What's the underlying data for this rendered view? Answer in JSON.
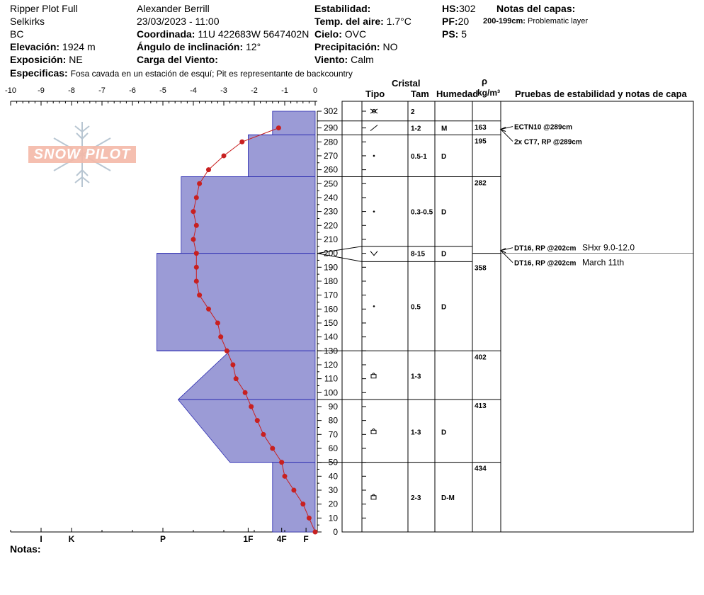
{
  "header": {
    "pit_name": "Ripper Plot Full",
    "range": "Selkirks",
    "state": "BC",
    "elevation_label": "Elevación:",
    "elevation_value": "1924 m",
    "aspect_label": "Exposición:",
    "aspect_value": "NE",
    "observer": "Alexander Berrill",
    "datetime": "23/03/2023 - 11:00",
    "coord_label": "Coordinada:",
    "coord_value": "11U 422683W 5647402N",
    "slope_label": "Ángulo de inclinación:",
    "slope_value": "12°",
    "wind_load_label": "Carga del Viento:",
    "stability_label": "Estabilidad:",
    "air_temp_label": "Temp. del aire:",
    "air_temp_value": "1.7°C",
    "sky_label": "Cielo:",
    "sky_value": "OVC",
    "precip_label": "Precipitación:",
    "precip_value": "NO",
    "wind_label": "Viento:",
    "wind_value": "Calm",
    "hs_label": "HS:",
    "hs_value": "302",
    "pf_label": "PF:",
    "pf_value": "20",
    "ps_label": "PS:",
    "ps_value": "5",
    "layer_notes_label": "Notas del capas:",
    "layer_note_range": "200-199cm:",
    "layer_note_text": "Problematic layer",
    "specifics_label": "Especificas:",
    "specifics_value": "Fosa cavada en un estación de esquí; Pit es representante de backcountry",
    "notes_label": "Notas:"
  },
  "logo": {
    "text": "SNOW PILOT"
  },
  "columns": {
    "crystal": "Cristal",
    "type": "Tipo",
    "size": "Tam",
    "moisture": "Humedad",
    "rho": "ρ",
    "density_unit": "kg/m³",
    "tests": "Pruebas de estabilidad y notas de capa"
  },
  "colors": {
    "hardness_fill": "#9b9bd6",
    "hardness_line": "#2a2ab0",
    "temp_line": "#c82020",
    "grid": "#000000"
  },
  "chart_data": {
    "type": "profile",
    "ylim": [
      0,
      302
    ],
    "y_ticks": [
      0,
      10,
      20,
      30,
      40,
      50,
      60,
      70,
      80,
      90,
      100,
      110,
      120,
      130,
      140,
      150,
      160,
      170,
      180,
      190,
      200,
      210,
      220,
      230,
      240,
      250,
      260,
      270,
      280,
      290,
      302
    ],
    "temp_axis": {
      "ticks": [
        -10,
        -9,
        -8,
        -7,
        -6,
        -5,
        -4,
        -3,
        -2,
        -1,
        0
      ],
      "xlim": [
        -10,
        0
      ]
    },
    "hardness_axis": {
      "labels": [
        "I",
        "K",
        "P",
        "1F",
        "4F",
        "F"
      ],
      "values": [
        9,
        8,
        5,
        2.2,
        1.1,
        0.3
      ]
    },
    "hardness_profile": [
      [
        0,
        1.4
      ],
      [
        50,
        1.4
      ],
      [
        50,
        2.8
      ],
      [
        95,
        4.5
      ],
      [
        95,
        4.5
      ],
      [
        130,
        2.8
      ],
      [
        130,
        5.2
      ],
      [
        200,
        5.2
      ],
      [
        200,
        4.4
      ],
      [
        255,
        4.4
      ],
      [
        255,
        2.2
      ],
      [
        285,
        2.2
      ],
      [
        285,
        1.4
      ],
      [
        302,
        1.4
      ]
    ],
    "hardness_dividers": [
      50,
      95,
      130,
      200,
      255,
      285
    ],
    "temperature": [
      {
        "depth": 290,
        "temp": -1.2
      },
      {
        "depth": 280,
        "temp": -2.4
      },
      {
        "depth": 270,
        "temp": -3.0
      },
      {
        "depth": 260,
        "temp": -3.5
      },
      {
        "depth": 250,
        "temp": -3.8
      },
      {
        "depth": 240,
        "temp": -3.9
      },
      {
        "depth": 230,
        "temp": -4.0
      },
      {
        "depth": 220,
        "temp": -3.9
      },
      {
        "depth": 210,
        "temp": -4.0
      },
      {
        "depth": 200,
        "temp": -3.9
      },
      {
        "depth": 190,
        "temp": -3.9
      },
      {
        "depth": 180,
        "temp": -3.9
      },
      {
        "depth": 170,
        "temp": -3.8
      },
      {
        "depth": 160,
        "temp": -3.5
      },
      {
        "depth": 150,
        "temp": -3.2
      },
      {
        "depth": 140,
        "temp": -3.1
      },
      {
        "depth": 130,
        "temp": -2.9
      },
      {
        "depth": 120,
        "temp": -2.7
      },
      {
        "depth": 110,
        "temp": -2.6
      },
      {
        "depth": 100,
        "temp": -2.3
      },
      {
        "depth": 90,
        "temp": -2.1
      },
      {
        "depth": 80,
        "temp": -1.9
      },
      {
        "depth": 70,
        "temp": -1.7
      },
      {
        "depth": 60,
        "temp": -1.4
      },
      {
        "depth": 50,
        "temp": -1.1
      },
      {
        "depth": 40,
        "temp": -1.0
      },
      {
        "depth": 30,
        "temp": -0.7
      },
      {
        "depth": 20,
        "temp": -0.4
      },
      {
        "depth": 10,
        "temp": -0.2
      },
      {
        "depth": 0,
        "temp": 0.0
      }
    ],
    "layers": [
      {
        "top": 302,
        "bottom": 295,
        "mid": 299,
        "type": "precipitation-particles",
        "size": "2",
        "moisture": "",
        "density": ""
      },
      {
        "top": 295,
        "bottom": 285,
        "mid": 290,
        "type": "decomposing-fragments",
        "size": "1-2",
        "moisture": "M",
        "density": "163"
      },
      {
        "top": 285,
        "bottom": 255,
        "mid": 270,
        "type": "rounded-grains",
        "size": "0.5-1",
        "moisture": "D",
        "density": "195"
      },
      {
        "top": 255,
        "bottom": 205,
        "mid": 230,
        "type": "rounded-grains",
        "size": "0.3-0.5",
        "moisture": "D",
        "density": "282"
      },
      {
        "top": 205,
        "bottom": 194,
        "mid": 200,
        "type": "surface-hoar",
        "size": "8-15",
        "moisture": "D",
        "density": ""
      },
      {
        "top": 194,
        "bottom": 130,
        "mid": 162,
        "type": "rounded-grains",
        "size": "0.5",
        "moisture": "D",
        "density": "358"
      },
      {
        "top": 130,
        "bottom": 95,
        "mid": 112,
        "type": "melt-forms",
        "size": "1-3",
        "moisture": "",
        "density": "402"
      },
      {
        "top": 95,
        "bottom": 50,
        "mid": 72,
        "type": "melt-forms",
        "size": "1-3",
        "moisture": "D",
        "density": "413"
      },
      {
        "top": 50,
        "bottom": 0,
        "mid": 25,
        "type": "melt-forms",
        "size": "2-3",
        "moisture": "D-M",
        "density": "434"
      }
    ],
    "density_ticks": [
      295,
      285,
      255,
      200,
      130,
      95,
      50
    ],
    "tests": [
      {
        "depth": 289,
        "label": "ECTN10 @289cm",
        "note": ""
      },
      {
        "depth": 289,
        "label": "2x CT7, RP @289cm",
        "note": ""
      },
      {
        "depth": 202,
        "label": "DT16, RP @202cm",
        "note": "SHxr 9.0-12.0"
      },
      {
        "depth": 202,
        "label": "DT16, RP @202cm",
        "note": "March 11th"
      }
    ]
  }
}
